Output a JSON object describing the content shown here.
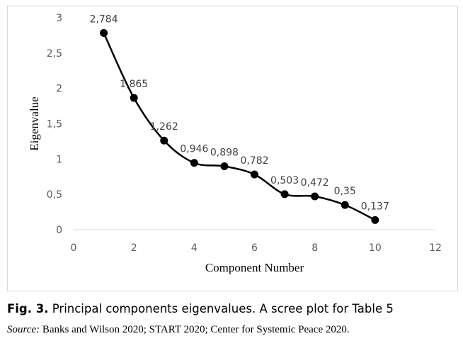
{
  "chart_data": {
    "type": "line",
    "title": "",
    "xlabel": "Component Number",
    "ylabel": "Eigenvalue",
    "xlim": [
      0,
      12
    ],
    "ylim": [
      0,
      3
    ],
    "x_ticks": [
      0,
      2,
      4,
      6,
      8,
      10,
      12
    ],
    "x_tick_labels": [
      "0",
      "2",
      "4",
      "6",
      "8",
      "10",
      "12"
    ],
    "y_ticks": [
      0,
      0.5,
      1,
      1.5,
      2,
      2.5,
      3
    ],
    "y_tick_labels": [
      "0",
      "0,5",
      "1",
      "1,5",
      "2",
      "2,5",
      "3"
    ],
    "grid": false,
    "smooth": true,
    "series": [
      {
        "x": [
          1,
          2,
          3,
          4,
          5,
          6,
          7,
          8,
          9,
          10
        ],
        "values": [
          2.784,
          1.865,
          1.262,
          0.946,
          0.898,
          0.782,
          0.503,
          0.472,
          0.35,
          0.137
        ],
        "data_labels": [
          "2,784",
          "1,865",
          "1,262",
          "0,946",
          "0,898",
          "0,782",
          "0,503",
          "0,472",
          "0,35",
          "0,137"
        ],
        "color": "#000000"
      }
    ]
  },
  "caption": {
    "label": "Fig. 3.",
    "text": " Principal components eigenvalues. A scree plot for Table 5"
  },
  "source": {
    "label": "Source:",
    "text": " Banks and Wilson 2020; START 2020; Center for Systemic Peace 2020."
  }
}
